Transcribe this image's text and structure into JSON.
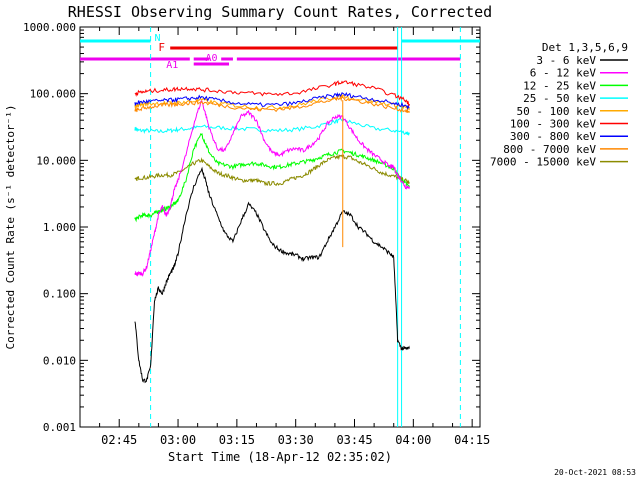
{
  "chart_data": {
    "type": "line",
    "title": "RHESSI Observing Summary Count Rates, Corrected",
    "xlabel": "Start Time (18-Apr-12 02:35:02)",
    "ylabel": "Corrected Count Rate (s⁻¹ detector⁻¹)",
    "y_scale": "log",
    "ylim": [
      0.001,
      1000
    ],
    "xlim": [
      "02:35",
      "04:17"
    ],
    "x_ticks": [
      "02:45",
      "03:00",
      "03:15",
      "03:30",
      "03:45",
      "04:00",
      "04:15"
    ],
    "y_ticks": [
      "0.001",
      "0.010",
      "0.100",
      "1.000",
      "10.000",
      "100.000",
      "1000.000"
    ],
    "legend_title": "Det 1,3,5,6,9",
    "legend_position": "right",
    "timestamp": "20-Oct-2021 08:53",
    "flags": {
      "night_label": "N",
      "flare_label": "F",
      "attenuator_labels": [
        "A1",
        "A0"
      ],
      "night_intervals": [
        [
          "02:35",
          "02:53"
        ],
        [
          "03:57",
          "04:17"
        ]
      ],
      "flare_intervals": [
        [
          "02:58",
          "03:56"
        ]
      ],
      "attenuator_intervals": [
        [
          "02:35",
          "03:03"
        ],
        [
          "03:04",
          "03:08"
        ],
        [
          "03:11",
          "03:14"
        ],
        [
          "03:15",
          "04:12"
        ]
      ],
      "cyan_solid_lines": [
        "03:56",
        "03:57"
      ],
      "cyan_dashed_lines": [
        "02:53",
        "04:12"
      ],
      "orange_spike_time": "03:42"
    },
    "series": [
      {
        "name": "3 - 6 keV",
        "color": "#000000",
        "x": [
          "02:49",
          "02:50",
          "02:51",
          "02:52",
          "02:53",
          "02:54",
          "02:55",
          "02:56",
          "02:57",
          "02:58",
          "02:59",
          "03:00",
          "03:02",
          "03:04",
          "03:06",
          "03:07",
          "03:08",
          "03:10",
          "03:12",
          "03:14",
          "03:16",
          "03:18",
          "03:20",
          "03:22",
          "03:24",
          "03:26",
          "03:28",
          "03:30",
          "03:32",
          "03:34",
          "03:36",
          "03:38",
          "03:40",
          "03:42",
          "03:44",
          "03:46",
          "03:48",
          "03:50",
          "03:52",
          "03:54",
          "03:55",
          "03:56",
          "03:57",
          "03:58",
          "03:59"
        ],
        "y": [
          0.04,
          0.01,
          0.005,
          0.005,
          0.008,
          0.08,
          0.12,
          0.1,
          0.15,
          0.2,
          0.25,
          0.4,
          1.5,
          4.0,
          7.5,
          5.0,
          3.0,
          1.5,
          0.8,
          0.6,
          1.2,
          2.2,
          1.6,
          0.9,
          0.55,
          0.45,
          0.4,
          0.38,
          0.33,
          0.35,
          0.35,
          0.6,
          1.0,
          1.7,
          1.5,
          1.0,
          0.8,
          0.6,
          0.5,
          0.4,
          0.35,
          0.02,
          0.015,
          0.015,
          0.015
        ]
      },
      {
        "name": "6 - 12 keV",
        "color": "#ff00ff",
        "x": [
          "02:49",
          "02:50",
          "02:51",
          "02:52",
          "02:53",
          "02:54",
          "02:55",
          "02:56",
          "02:57",
          "02:58",
          "02:59",
          "03:00",
          "03:02",
          "03:04",
          "03:06",
          "03:07",
          "03:08",
          "03:10",
          "03:12",
          "03:14",
          "03:16",
          "03:18",
          "03:20",
          "03:22",
          "03:24",
          "03:26",
          "03:28",
          "03:30",
          "03:32",
          "03:34",
          "03:36",
          "03:38",
          "03:40",
          "03:42",
          "03:44",
          "03:46",
          "03:48",
          "03:50",
          "03:52",
          "03:54",
          "03:55",
          "03:56",
          "03:57",
          "03:58",
          "03:59"
        ],
        "y": [
          0.2,
          0.2,
          0.2,
          0.25,
          0.45,
          0.8,
          1.5,
          2.0,
          1.5,
          2.0,
          3.5,
          5.0,
          12,
          35,
          80,
          50,
          30,
          15,
          14,
          25,
          45,
          52,
          40,
          20,
          13,
          12,
          14,
          15,
          14,
          17,
          22,
          35,
          45,
          45,
          30,
          20,
          15,
          12,
          10,
          8,
          8,
          6,
          5,
          4,
          4
        ]
      },
      {
        "name": "12 - 25 keV",
        "color": "#00ff00",
        "x": [
          "02:49",
          "02:50",
          "02:51",
          "02:52",
          "02:53",
          "02:54",
          "02:55",
          "02:56",
          "02:57",
          "02:58",
          "02:59",
          "03:00",
          "03:02",
          "03:04",
          "03:06",
          "03:07",
          "03:08",
          "03:10",
          "03:12",
          "03:14",
          "03:16",
          "03:18",
          "03:20",
          "03:22",
          "03:24",
          "03:26",
          "03:28",
          "03:30",
          "03:32",
          "03:34",
          "03:36",
          "03:38",
          "03:40",
          "03:42",
          "03:44",
          "03:46",
          "03:48",
          "03:50",
          "03:52",
          "03:54",
          "03:55",
          "03:56",
          "03:57",
          "03:58",
          "03:59"
        ],
        "y": [
          1.3,
          1.4,
          1.5,
          1.5,
          1.5,
          1.6,
          1.7,
          1.8,
          1.9,
          2.0,
          2.2,
          2.5,
          5.0,
          15,
          25,
          18,
          13,
          9,
          8.5,
          8,
          8.5,
          9,
          9,
          8.5,
          8,
          8,
          8.5,
          9,
          9.5,
          10,
          11,
          12,
          13,
          14,
          13,
          12,
          11,
          10,
          9,
          8,
          7.5,
          6,
          5,
          4.5,
          4
        ]
      },
      {
        "name": "25 - 50 keV",
        "color": "#00ffff",
        "x": [
          "02:49",
          "02:50",
          "02:52",
          "02:55",
          "02:58",
          "03:00",
          "03:03",
          "03:06",
          "03:10",
          "03:15",
          "03:20",
          "03:25",
          "03:30",
          "03:35",
          "03:40",
          "03:42",
          "03:45",
          "03:50",
          "03:55",
          "03:58",
          "03:59"
        ],
        "y": [
          30,
          28,
          28,
          27,
          28,
          29,
          30,
          32,
          31,
          30,
          29,
          28,
          29,
          32,
          38,
          40,
          36,
          30,
          28,
          26,
          25
        ]
      },
      {
        "name": "50 - 100 keV",
        "color": "#ffaa00",
        "x": [
          "02:49",
          "02:50",
          "02:52",
          "02:55",
          "02:58",
          "03:00",
          "03:03",
          "03:06",
          "03:10",
          "03:15",
          "03:20",
          "03:25",
          "03:30",
          "03:35",
          "03:40",
          "03:42",
          "03:45",
          "03:50",
          "03:55",
          "03:58",
          "03:59"
        ],
        "y": [
          65,
          68,
          70,
          72,
          72,
          73,
          76,
          80,
          72,
          66,
          62,
          62,
          66,
          78,
          88,
          92,
          85,
          76,
          68,
          62,
          60
        ]
      },
      {
        "name": "100 - 300 keV",
        "color": "#ff0000",
        "x": [
          "02:49",
          "02:50",
          "02:52",
          "02:55",
          "02:58",
          "03:00",
          "03:03",
          "03:06",
          "03:10",
          "03:15",
          "03:20",
          "03:25",
          "03:30",
          "03:35",
          "03:40",
          "03:42",
          "03:45",
          "03:50",
          "03:55",
          "03:58",
          "03:59"
        ],
        "y": [
          100,
          104,
          108,
          112,
          115,
          118,
          120,
          115,
          110,
          105,
          100,
          98,
          102,
          118,
          140,
          150,
          140,
          120,
          95,
          80,
          70
        ]
      },
      {
        "name": "300 - 800 keV",
        "color": "#0000ff",
        "x": [
          "02:49",
          "02:50",
          "02:52",
          "02:55",
          "02:58",
          "03:00",
          "03:03",
          "03:06",
          "03:10",
          "03:15",
          "03:20",
          "03:25",
          "03:30",
          "03:35",
          "03:40",
          "03:42",
          "03:45",
          "03:50",
          "03:55",
          "03:58",
          "03:59"
        ],
        "y": [
          70,
          74,
          76,
          78,
          80,
          82,
          85,
          88,
          80,
          72,
          68,
          68,
          72,
          84,
          95,
          98,
          92,
          82,
          72,
          66,
          62
        ]
      },
      {
        "name": "800 - 7000 keV",
        "color": "#ff8800",
        "x": [
          "02:49",
          "02:50",
          "02:52",
          "02:55",
          "02:58",
          "03:00",
          "03:03",
          "03:06",
          "03:10",
          "03:15",
          "03:20",
          "03:25",
          "03:30",
          "03:35",
          "03:40",
          "03:42",
          "03:45",
          "03:50",
          "03:55",
          "03:58",
          "03:59"
        ],
        "y": [
          55,
          58,
          62,
          66,
          68,
          70,
          72,
          74,
          68,
          62,
          58,
          58,
          62,
          72,
          82,
          86,
          80,
          70,
          60,
          56,
          52
        ]
      },
      {
        "name": "7000 - 15000 keV",
        "color": "#8b8b00",
        "x": [
          "02:49",
          "02:50",
          "02:52",
          "02:54",
          "02:56",
          "02:58",
          "03:00",
          "03:02",
          "03:04",
          "03:06",
          "03:08",
          "03:10",
          "03:12",
          "03:14",
          "03:16",
          "03:18",
          "03:20",
          "03:22",
          "03:24",
          "03:26",
          "03:28",
          "03:30",
          "03:32",
          "03:34",
          "03:36",
          "03:38",
          "03:40",
          "03:42",
          "03:44",
          "03:46",
          "03:48",
          "03:50",
          "03:52",
          "03:54",
          "03:56",
          "03:58",
          "03:59"
        ],
        "y": [
          5,
          5.5,
          5.5,
          5.8,
          6,
          6,
          6.5,
          7.5,
          9,
          10,
          8,
          6.5,
          6,
          5.5,
          5,
          5,
          5,
          4.5,
          4.5,
          4.5,
          5,
          5.5,
          6,
          7,
          8.5,
          10,
          11,
          11.5,
          11,
          9.5,
          8.5,
          7.5,
          6.5,
          6,
          5.5,
          5,
          4.5
        ]
      }
    ]
  }
}
